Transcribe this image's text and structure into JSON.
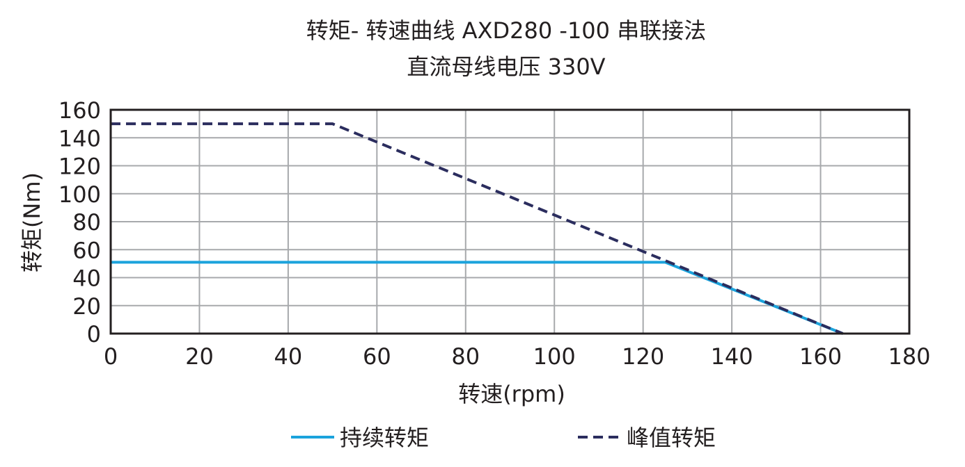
{
  "chart_data": {
    "type": "line",
    "title": "转矩- 转速曲线 AXD280 -100 串联接法",
    "subtitle": "直流母线电压 330V",
    "xlabel": "转速(rpm)",
    "ylabel": "转矩(Nm)",
    "xlim": [
      0,
      180
    ],
    "ylim": [
      0,
      160
    ],
    "xticks": [
      0,
      20,
      40,
      60,
      80,
      100,
      120,
      140,
      160,
      180
    ],
    "yticks": [
      0,
      20,
      40,
      60,
      80,
      100,
      120,
      140,
      160
    ],
    "grid": true,
    "legend_position": "bottom",
    "series": [
      {
        "name": "持续转矩",
        "color": "#1ba3dc",
        "style": "solid",
        "x": [
          0,
          125,
          165
        ],
        "y": [
          51,
          51,
          0
        ]
      },
      {
        "name": "峰值转矩",
        "color": "#2b2d5e",
        "style": "dashed",
        "x": [
          0,
          50,
          165
        ],
        "y": [
          150,
          150,
          0
        ]
      }
    ]
  }
}
